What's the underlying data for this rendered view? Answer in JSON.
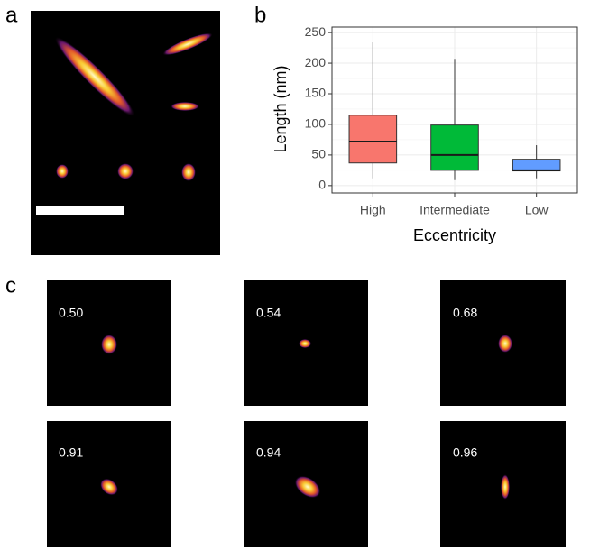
{
  "panel_labels": [
    "a",
    "b",
    "c"
  ],
  "chart_data": {
    "type": "box",
    "x_label": "Eccentricity",
    "y_label": "Length (nm)",
    "categories": [
      "High",
      "Intermediate",
      "Low"
    ],
    "colors": [
      "#f8766d",
      "#00ba38",
      "#619cff"
    ],
    "boxes": [
      {
        "whislo": 12,
        "q1": 37,
        "med": 72,
        "q3": 115,
        "whishi": 234
      },
      {
        "whislo": 9,
        "q1": 25,
        "med": 50,
        "q3": 99,
        "whishi": 207
      },
      {
        "whislo": 12,
        "q1": 24,
        "med": 25,
        "q3": 43,
        "whishi": 66
      }
    ],
    "ylim": [
      -12,
      259
    ],
    "yticks": [
      0,
      50,
      100,
      150,
      200,
      250
    ],
    "grid": true
  },
  "eccentricity_labels": [
    "0.50",
    "0.54",
    "0.68",
    "0.91",
    "0.94",
    "0.96"
  ]
}
